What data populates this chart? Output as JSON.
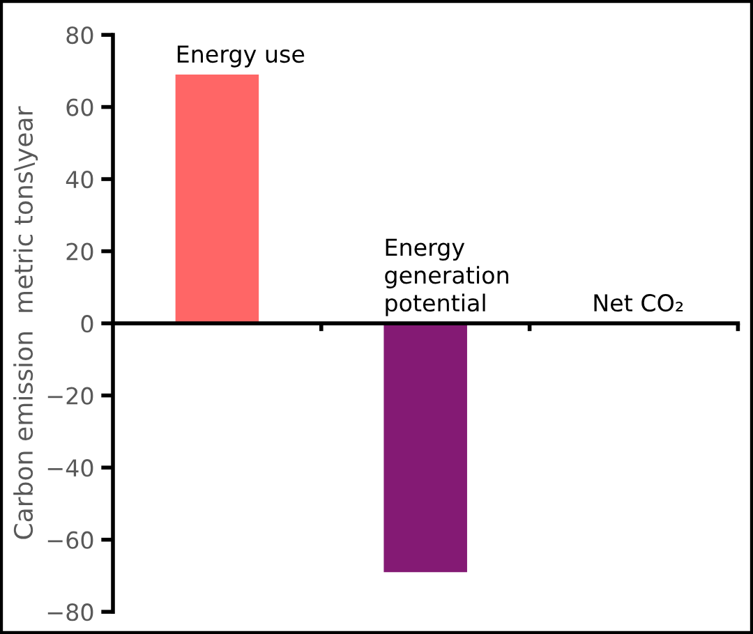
{
  "chart_data": {
    "type": "bar",
    "ylabel": "Carbon emission  metric tons\\year",
    "categories": [
      "Energy use",
      "Energy\ngeneration\npotential",
      "Net CO₂"
    ],
    "values": [
      69,
      -69,
      0
    ],
    "colors": [
      "#ff6666",
      "#841a74",
      null
    ],
    "ylim": [
      -80,
      80
    ],
    "yticks": [
      {
        "value": -80,
        "label": "−80"
      },
      {
        "value": -60,
        "label": "−60"
      },
      {
        "value": -40,
        "label": "−40"
      },
      {
        "value": -20,
        "label": "−20"
      },
      0,
      20,
      40,
      60,
      80
    ],
    "grid": false,
    "legend": false
  }
}
